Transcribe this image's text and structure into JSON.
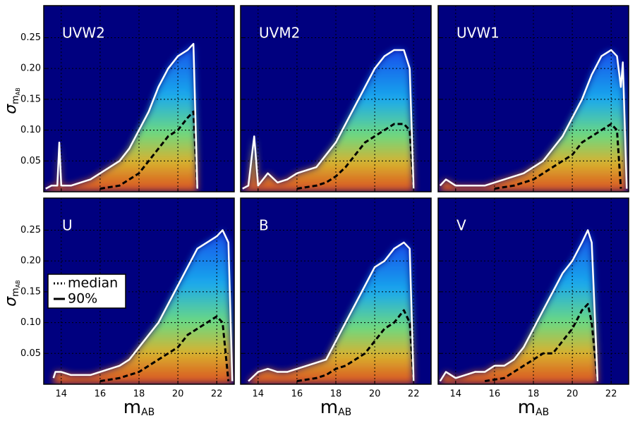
{
  "chart_data": [
    {
      "type": "line",
      "title": "UVW2",
      "ylabel": "σ",
      "ylabel_sub": "m",
      "ylabel_subsub": "AB",
      "xlim": [
        13.1,
        22.9
      ],
      "ylim": [
        0,
        0.302
      ],
      "xticks": [
        14,
        16,
        18,
        20,
        22
      ],
      "yticks": [
        0.05,
        {
          "value": 0.1,
          "label": "0.10"
        },
        0.15,
        {
          "value": 0.2,
          "label": "0.20"
        },
        0.25
      ],
      "grid": true,
      "series": [
        {
          "name": "median",
          "color": "#000000",
          "style": "dashed",
          "x": [
            16,
            17,
            17.5,
            18,
            18.5,
            19,
            19.5,
            20,
            20.5,
            20.8,
            21
          ],
          "values": [
            0.005,
            0.01,
            0.02,
            0.03,
            0.05,
            0.07,
            0.09,
            0.1,
            0.12,
            0.13,
            0.005
          ]
        },
        {
          "name": "90%",
          "color": "#ffffff",
          "style": "solid",
          "x": [
            13.2,
            13.5,
            13.8,
            13.9,
            14,
            14.5,
            15,
            15.5,
            16,
            16.5,
            17,
            17.5,
            18,
            18.5,
            19,
            19.5,
            20,
            20.5,
            20.8,
            21
          ],
          "values": [
            0.005,
            0.01,
            0.01,
            0.08,
            0.01,
            0.01,
            0.015,
            0.02,
            0.03,
            0.04,
            0.05,
            0.07,
            0.1,
            0.13,
            0.17,
            0.2,
            0.22,
            0.23,
            0.24,
            0.005
          ]
        }
      ]
    },
    {
      "type": "line",
      "title": "UVM2",
      "xlim": [
        13.1,
        22.9
      ],
      "ylim": [
        0,
        0.302
      ],
      "xticks": [
        14,
        16,
        18,
        20,
        22
      ],
      "yticks": [
        0.05,
        {
          "value": 0.1,
          "label": "0.10"
        },
        0.15,
        {
          "value": 0.2,
          "label": "0.20"
        },
        0.25
      ],
      "grid": true,
      "series": [
        {
          "name": "median",
          "color": "#000000",
          "style": "dashed",
          "x": [
            16,
            17,
            17.5,
            18,
            18.5,
            19,
            19.5,
            20,
            20.5,
            21,
            21.5,
            21.8,
            22
          ],
          "values": [
            0.005,
            0.01,
            0.015,
            0.025,
            0.04,
            0.06,
            0.08,
            0.09,
            0.1,
            0.11,
            0.11,
            0.1,
            0.005
          ]
        },
        {
          "name": "90%",
          "color": "#ffffff",
          "style": "solid",
          "x": [
            13.2,
            13.5,
            13.8,
            14,
            14.5,
            15,
            15.5,
            16,
            16.5,
            17,
            17.5,
            18,
            18.5,
            19,
            19.5,
            20,
            20.5,
            21,
            21.5,
            21.8,
            22
          ],
          "values": [
            0.005,
            0.01,
            0.09,
            0.01,
            0.03,
            0.015,
            0.02,
            0.03,
            0.035,
            0.04,
            0.06,
            0.08,
            0.11,
            0.14,
            0.17,
            0.2,
            0.22,
            0.23,
            0.23,
            0.2,
            0.005
          ]
        }
      ]
    },
    {
      "type": "line",
      "title": "UVW1",
      "xlim": [
        13.1,
        22.9
      ],
      "ylim": [
        0,
        0.302
      ],
      "xticks": [
        14,
        16,
        18,
        20,
        22
      ],
      "yticks": [
        0.05,
        {
          "value": 0.1,
          "label": "0.10"
        },
        0.15,
        {
          "value": 0.2,
          "label": "0.20"
        },
        0.25
      ],
      "grid": true,
      "series": [
        {
          "name": "median",
          "color": "#000000",
          "style": "dashed",
          "x": [
            16,
            17,
            18,
            18.5,
            19,
            19.5,
            20,
            20.5,
            21,
            21.5,
            22,
            22.3,
            22.5
          ],
          "values": [
            0.005,
            0.01,
            0.02,
            0.03,
            0.04,
            0.05,
            0.06,
            0.08,
            0.09,
            0.1,
            0.11,
            0.1,
            0.005
          ]
        },
        {
          "name": "90%",
          "color": "#ffffff",
          "style": "solid",
          "x": [
            13.2,
            13.5,
            14,
            14.5,
            15,
            15.5,
            16,
            16.5,
            17,
            17.5,
            18,
            18.5,
            19,
            19.5,
            20,
            20.5,
            21,
            21.5,
            22,
            22.3,
            22.5,
            22.6,
            22.8
          ],
          "values": [
            0.01,
            0.02,
            0.01,
            0.01,
            0.01,
            0.01,
            0.015,
            0.02,
            0.025,
            0.03,
            0.04,
            0.05,
            0.07,
            0.09,
            0.12,
            0.15,
            0.19,
            0.22,
            0.23,
            0.22,
            0.17,
            0.21,
            0.005
          ]
        }
      ]
    },
    {
      "type": "line",
      "title": "U",
      "ylabel": "σ",
      "ylabel_sub": "m",
      "ylabel_subsub": "AB",
      "xlabel": "m",
      "xlabel_sub": "AB",
      "legend": "center left",
      "xlim": [
        13.1,
        22.9
      ],
      "ylim": [
        0,
        0.302
      ],
      "xticks": [
        14,
        16,
        18,
        20,
        22
      ],
      "yticks": [
        0.05,
        {
          "value": 0.1,
          "label": "0.10"
        },
        0.15,
        {
          "value": 0.2,
          "label": "0.20"
        },
        0.25
      ],
      "grid": true,
      "series": [
        {
          "name": "median",
          "color": "#000000",
          "style": "dashed",
          "x": [
            16,
            17,
            17.5,
            18,
            18.5,
            19,
            19.5,
            20,
            20.5,
            21,
            21.5,
            22,
            22.3,
            22.6
          ],
          "values": [
            0.005,
            0.01,
            0.015,
            0.02,
            0.03,
            0.04,
            0.05,
            0.06,
            0.08,
            0.09,
            0.1,
            0.11,
            0.1,
            0.005
          ]
        },
        {
          "name": "90%",
          "color": "#ffffff",
          "style": "solid",
          "x": [
            13.6,
            13.7,
            14,
            14.5,
            15,
            15.5,
            16,
            16.5,
            17,
            17.5,
            18,
            18.5,
            19,
            19.5,
            20,
            20.5,
            21,
            21.5,
            22,
            22.3,
            22.6,
            22.8
          ],
          "values": [
            0.01,
            0.02,
            0.02,
            0.015,
            0.015,
            0.015,
            0.02,
            0.025,
            0.03,
            0.04,
            0.06,
            0.08,
            0.1,
            0.13,
            0.16,
            0.19,
            0.22,
            0.23,
            0.24,
            0.25,
            0.23,
            0.005
          ]
        }
      ]
    },
    {
      "type": "line",
      "title": "B",
      "xlabel": "m",
      "xlabel_sub": "AB",
      "xlim": [
        13.1,
        22.9
      ],
      "ylim": [
        0,
        0.302
      ],
      "xticks": [
        14,
        16,
        18,
        20,
        22
      ],
      "yticks": [
        0.05,
        {
          "value": 0.1,
          "label": "0.10"
        },
        0.15,
        {
          "value": 0.2,
          "label": "0.20"
        },
        0.25
      ],
      "grid": true,
      "series": [
        {
          "name": "median",
          "color": "#000000",
          "style": "dashed",
          "x": [
            16,
            17,
            17.5,
            18,
            18.5,
            19,
            19.5,
            20,
            20.5,
            21,
            21.5,
            21.8,
            22
          ],
          "values": [
            0.005,
            0.01,
            0.015,
            0.025,
            0.03,
            0.04,
            0.05,
            0.07,
            0.09,
            0.1,
            0.12,
            0.1,
            0.005
          ]
        },
        {
          "name": "90%",
          "color": "#ffffff",
          "style": "solid",
          "x": [
            13.5,
            14,
            14.5,
            15,
            15.5,
            16,
            16.5,
            17,
            17.5,
            18,
            18.5,
            19,
            19.5,
            20,
            20.5,
            21,
            21.5,
            21.8,
            22
          ],
          "values": [
            0.005,
            0.02,
            0.025,
            0.02,
            0.02,
            0.025,
            0.03,
            0.035,
            0.04,
            0.07,
            0.1,
            0.13,
            0.16,
            0.19,
            0.2,
            0.22,
            0.23,
            0.22,
            0.005
          ]
        }
      ]
    },
    {
      "type": "line",
      "title": "V",
      "xlabel": "m",
      "xlabel_sub": "AB",
      "xlim": [
        13.1,
        22.9
      ],
      "ylim": [
        0,
        0.302
      ],
      "xticks": [
        14,
        16,
        18,
        20,
        22
      ],
      "yticks": [
        0.05,
        {
          "value": 0.1,
          "label": "0.10"
        },
        0.15,
        {
          "value": 0.2,
          "label": "0.20"
        },
        0.25
      ],
      "grid": true,
      "series": [
        {
          "name": "median",
          "color": "#000000",
          "style": "dashed",
          "x": [
            15.5,
            16.5,
            17,
            17.5,
            18,
            18.5,
            19,
            19.5,
            20,
            20.5,
            20.8,
            21,
            21.3
          ],
          "values": [
            0.005,
            0.01,
            0.02,
            0.03,
            0.04,
            0.05,
            0.05,
            0.07,
            0.09,
            0.12,
            0.13,
            0.1,
            0.005
          ]
        },
        {
          "name": "90%",
          "color": "#ffffff",
          "style": "solid",
          "x": [
            13.2,
            13.5,
            14,
            14.5,
            15,
            15.5,
            16,
            16.5,
            17,
            17.5,
            18,
            18.5,
            19,
            19.5,
            20,
            20.5,
            20.8,
            21,
            21.3
          ],
          "values": [
            0.005,
            0.02,
            0.01,
            0.015,
            0.02,
            0.02,
            0.03,
            0.03,
            0.04,
            0.06,
            0.09,
            0.12,
            0.15,
            0.18,
            0.2,
            0.23,
            0.25,
            0.23,
            0.005
          ]
        }
      ]
    }
  ]
}
